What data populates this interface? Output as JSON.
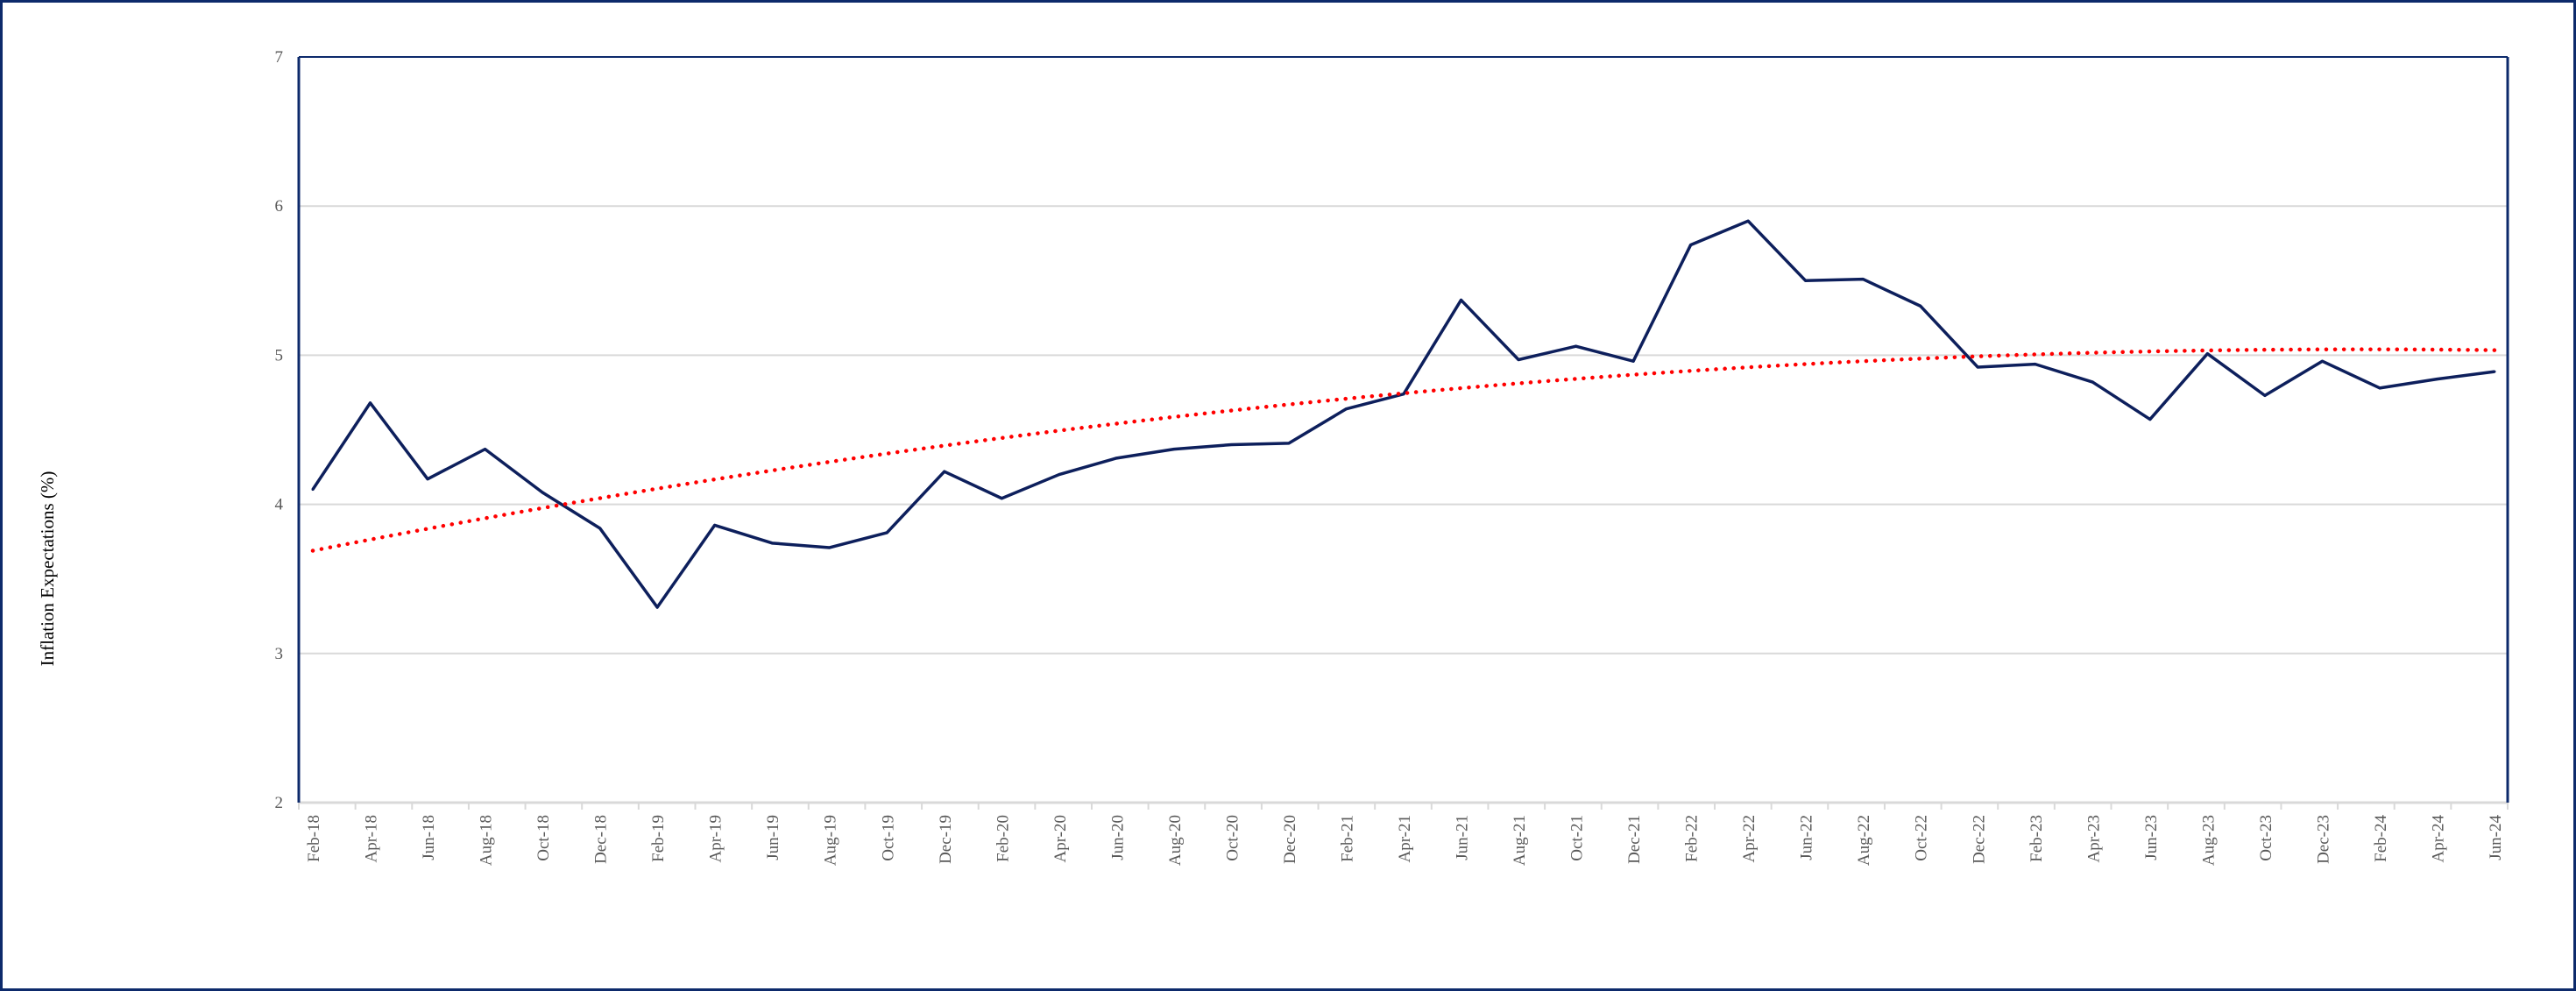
{
  "chart_data": {
    "type": "line",
    "title": "",
    "xlabel": "",
    "ylabel": "Inflation  Expectations (%)",
    "ylim": [
      2,
      7
    ],
    "yticks": [
      "2",
      "3",
      "4",
      "5",
      "6",
      "7"
    ],
    "grid": true,
    "legend": "none",
    "categories": [
      "Feb-18",
      "Apr-18",
      "Jun-18",
      "Aug-18",
      "Oct-18",
      "Dec-18",
      "Feb-19",
      "Apr-19",
      "Jun-19",
      "Aug-19",
      "Oct-19",
      "Dec-19",
      "Feb-20",
      "Apr-20",
      "Jun-20",
      "Aug-20",
      "Oct-20",
      "Dec-20",
      "Feb-21",
      "Apr-21",
      "Jun-21",
      "Aug-21",
      "Oct-21",
      "Dec-21",
      "Feb-22",
      "Apr-22",
      "Jun-22",
      "Aug-22",
      "Oct-22",
      "Dec-22",
      "Feb-23",
      "Apr-23",
      "Jun-23",
      "Aug-23",
      "Oct-23",
      "Dec-23",
      "Feb-24",
      "Apr-24",
      "Jun-24"
    ],
    "series": [
      {
        "values": [
          4.1,
          4.68,
          4.17,
          4.37,
          4.08,
          3.84,
          3.31,
          3.86,
          3.74,
          3.71,
          3.81,
          4.22,
          4.04,
          4.2,
          4.31,
          4.37,
          4.4,
          4.41,
          4.64,
          4.74,
          5.37,
          4.97,
          5.06,
          4.96,
          5.74,
          5.9,
          5.5,
          5.51,
          5.33,
          4.92,
          4.94,
          4.82,
          4.57,
          5.01,
          4.73,
          4.96,
          4.78,
          4.84,
          4.89
        ],
        "color": "#0d1f5c"
      }
    ],
    "trendline": {
      "type": "polynomial",
      "order": 2,
      "color": "#ff0000",
      "style": "dotted"
    }
  },
  "colors": {
    "frame": "#0d2a6b",
    "grid": "#d9d9d9",
    "axis": "#0d2a6b"
  }
}
